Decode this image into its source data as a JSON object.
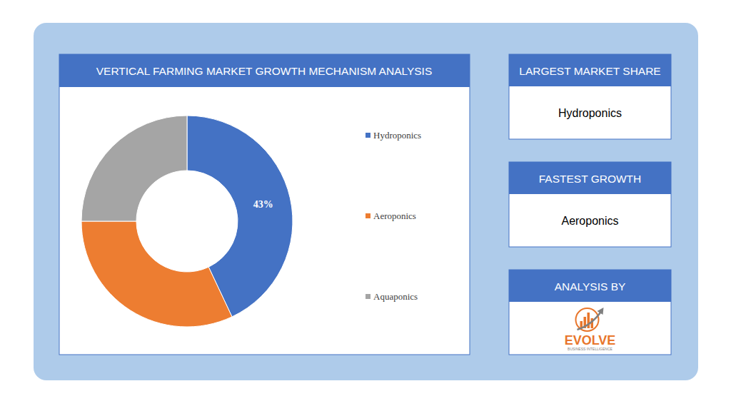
{
  "chart_data": {
    "type": "donut",
    "title": "VERTICAL FARMING MARKET GROWTH MECHANISM ANALYSIS",
    "categories": [
      "Hydroponics",
      "Aeroponics",
      "Aquaponics"
    ],
    "values": [
      43,
      32,
      25
    ],
    "colors": [
      "#4472c4",
      "#ed7d31",
      "#a5a5a5"
    ],
    "data_labels": true,
    "value_labels": [
      "43%",
      null,
      null
    ],
    "legend": "right"
  },
  "panels": [
    {
      "title": "LARGEST MARKET SHARE",
      "text": "Hydroponics"
    },
    {
      "title": "FASTEST GROWTH",
      "text": "Aeroponics"
    },
    {
      "title": "ANALYSIS BY",
      "logo": {
        "name": "EVOLVE",
        "tagline": "BUSINESS INTELLIGENCE"
      }
    }
  ]
}
